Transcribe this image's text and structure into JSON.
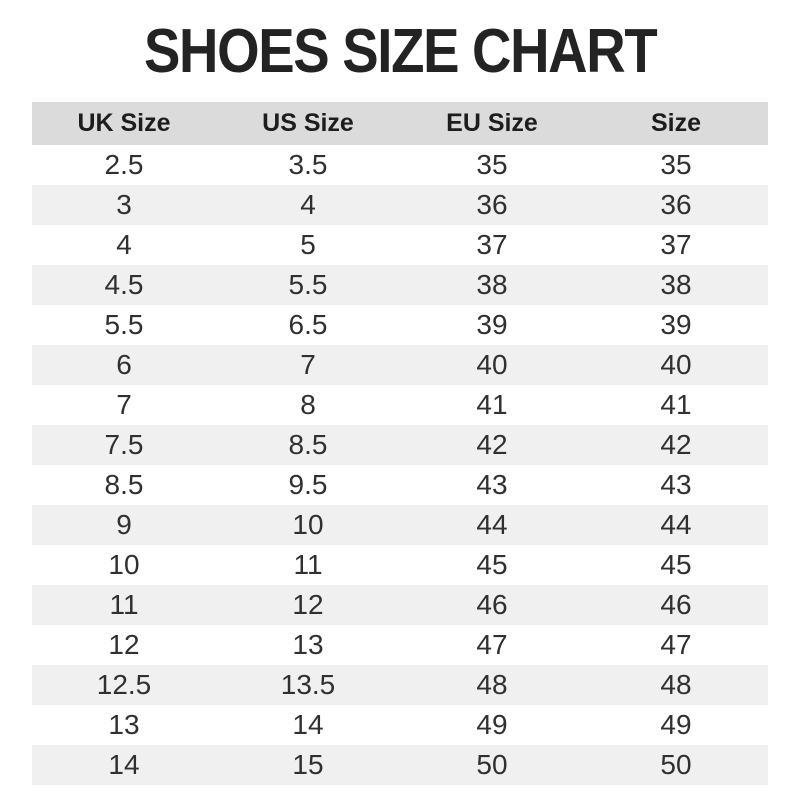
{
  "title": "SHOES SIZE CHART",
  "colors": {
    "background": "#ffffff",
    "title_text": "#232323",
    "header_bg": "#dbdbdb",
    "header_text": "#1d1d1d",
    "alt_row_bg": "#f0f0f0",
    "body_text": "#303030"
  },
  "chart_data": {
    "type": "table",
    "title": "SHOES SIZE CHART",
    "columns": [
      "UK Size",
      "US Size",
      "EU Size",
      "Size"
    ],
    "rows": [
      [
        "2.5",
        "3.5",
        "35",
        "35"
      ],
      [
        "3",
        "4",
        "36",
        "36"
      ],
      [
        "4",
        "5",
        "37",
        "37"
      ],
      [
        "4.5",
        "5.5",
        "38",
        "38"
      ],
      [
        "5.5",
        "6.5",
        "39",
        "39"
      ],
      [
        "6",
        "7",
        "40",
        "40"
      ],
      [
        "7",
        "8",
        "41",
        "41"
      ],
      [
        "7.5",
        "8.5",
        "42",
        "42"
      ],
      [
        "8.5",
        "9.5",
        "43",
        "43"
      ],
      [
        "9",
        "10",
        "44",
        "44"
      ],
      [
        "10",
        "11",
        "45",
        "45"
      ],
      [
        "11",
        "12",
        "46",
        "46"
      ],
      [
        "12",
        "13",
        "47",
        "47"
      ],
      [
        "12.5",
        "13.5",
        "48",
        "48"
      ],
      [
        "13",
        "14",
        "49",
        "49"
      ],
      [
        "14",
        "15",
        "50",
        "50"
      ]
    ],
    "layout": {
      "striped": true,
      "first_data_row_background": "white",
      "alternate_row_background": "light-gray",
      "header_background": "gray",
      "alignment": "center"
    }
  }
}
